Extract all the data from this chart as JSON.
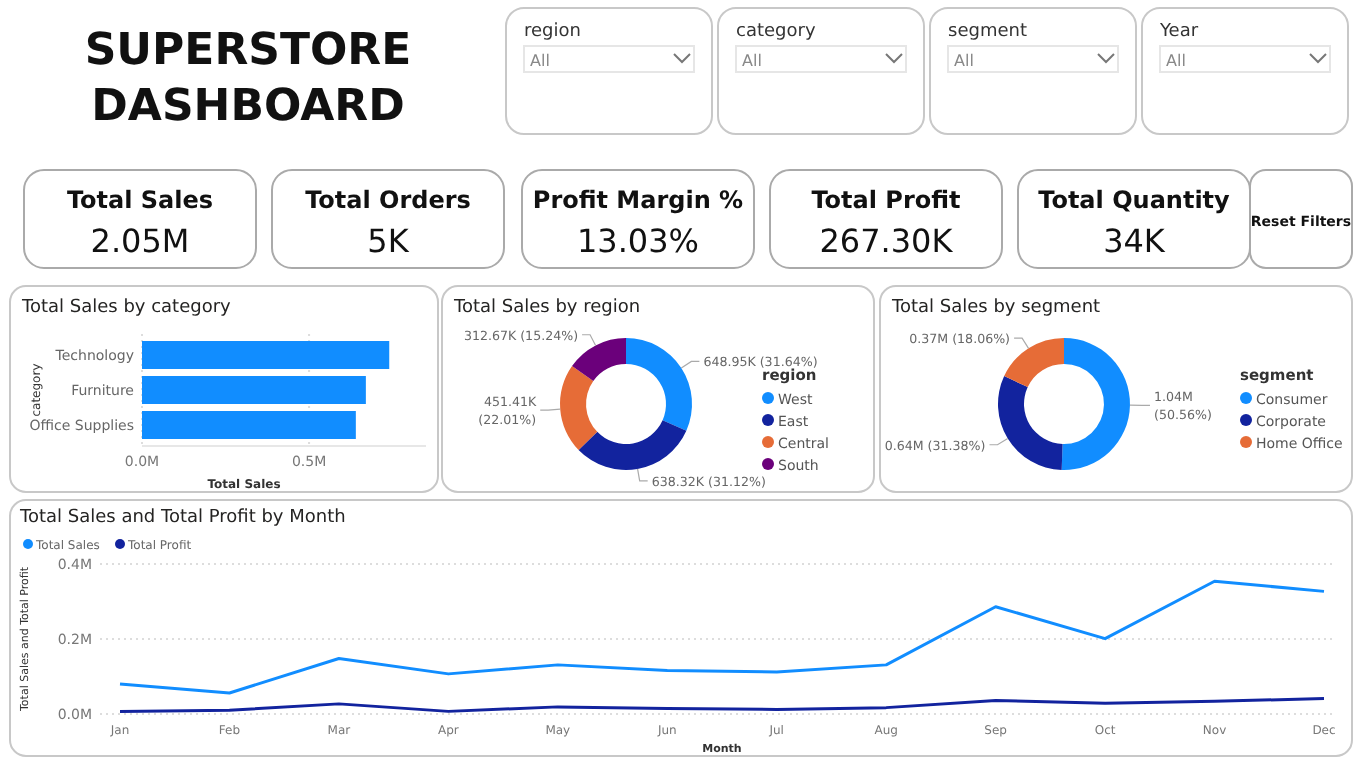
{
  "chart_data": [
    {
      "type": "other",
      "title": "SUPERSTORE DASHBOARD",
      "annotations": [
        "region",
        "All",
        "category",
        "All",
        "segment",
        "All",
        "Year",
        "All"
      ]
    },
    {
      "type": "other",
      "annotations": [
        "Total Sales",
        "2.05M",
        "Total Orders",
        "5K",
        "Profit Margin %",
        "13.03%",
        "Total Profit",
        "267.30K",
        "Total Quantity",
        "34K",
        "Reset Filters"
      ]
    },
    {
      "type": "bar",
      "title": "Total Sales by category",
      "orientation": "horizontal",
      "categories": [
        "Technology",
        "Furniture",
        "Office Supplies"
      ],
      "values": [
        0.74,
        0.67,
        0.64
      ],
      "color": "#118dff",
      "xlim": [
        0,
        0.85
      ],
      "xticks": [
        {
          "value": 0,
          "label": "0.0M"
        },
        {
          "value": 0.5,
          "label": "0.5M"
        }
      ],
      "xlabel": "Total Sales",
      "ylabel": "category"
    },
    {
      "type": "donut",
      "title": "Total Sales by region",
      "categories": [
        "West",
        "East",
        "Central",
        "South"
      ],
      "values": [
        31.64,
        31.12,
        22.01,
        15.24
      ],
      "colors": [
        "#118dff",
        "#12239e",
        "#e66c37",
        "#6b007b"
      ],
      "value_labels": [
        "648.95K (31.64%)",
        "638.32K (31.12%)",
        "451.41K (22.01%)",
        "312.67K (15.24%)"
      ],
      "legend": "right",
      "legend_title": "region"
    },
    {
      "type": "donut",
      "title": "Total Sales by segment",
      "categories": [
        "Consumer",
        "Corporate",
        "Home Office"
      ],
      "values": [
        50.56,
        31.38,
        18.06
      ],
      "colors": [
        "#118dff",
        "#12239e",
        "#e66c37"
      ],
      "value_labels": [
        "1.04M (50.56%)",
        "0.64M (31.38%)",
        "0.37M (18.06%)"
      ],
      "legend": "right",
      "legend_title": "segment"
    },
    {
      "type": "line",
      "title": "Total Sales and Total Profit by Month",
      "categories": [
        "Jan",
        "Feb",
        "Mar",
        "Apr",
        "May",
        "Jun",
        "Jul",
        "Aug",
        "Sep",
        "Oct",
        "Nov",
        "Dec"
      ],
      "xlabel": "Month",
      "ylabel": "Total Sales and Total Profit",
      "ylim": [
        0,
        0.4
      ],
      "yticks": [
        {
          "value": 0,
          "label": "0.0M"
        },
        {
          "value": 0.2,
          "label": "0.2M"
        },
        {
          "value": 0.4,
          "label": "0.4M"
        }
      ],
      "grid": "y",
      "legend": "top left",
      "series": [
        {
          "name": "Total Sales",
          "color": "#118dff",
          "values": [
            0.08,
            0.056,
            0.148,
            0.107,
            0.131,
            0.116,
            0.112,
            0.131,
            0.286,
            0.201,
            0.354,
            0.327
          ]
        },
        {
          "name": "Total Profit",
          "color": "#12239e",
          "values": [
            0.007,
            0.01,
            0.027,
            0.007,
            0.019,
            0.015,
            0.012,
            0.017,
            0.036,
            0.029,
            0.034,
            0.041
          ]
        }
      ]
    }
  ]
}
